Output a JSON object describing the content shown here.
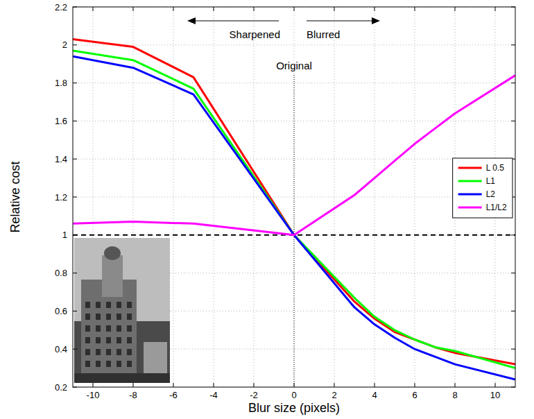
{
  "chart_data": {
    "type": "line",
    "x_label": "Blur size (pixels)",
    "y_label": "Relative cost",
    "annotations": [
      "Sharpened",
      "Blurred",
      "Original"
    ],
    "vline": 0,
    "hline": 1,
    "x": [
      -11,
      -8,
      -5,
      0,
      3,
      4,
      5,
      6,
      7,
      8,
      11
    ],
    "series": [
      {
        "name": "L 0.5",
        "color": "#ff0000",
        "values": [
          2.03,
          1.99,
          1.83,
          1.0,
          0.65,
          0.56,
          0.49,
          0.45,
          0.41,
          0.38,
          0.32
        ]
      },
      {
        "name": "L1",
        "color": "#00ff00",
        "values": [
          1.97,
          1.92,
          1.77,
          1.0,
          0.67,
          0.57,
          0.5,
          0.45,
          0.41,
          0.39,
          0.3
        ]
      },
      {
        "name": "L2",
        "color": "#0000ff",
        "values": [
          1.94,
          1.88,
          1.74,
          1.0,
          0.62,
          0.53,
          0.46,
          0.4,
          0.36,
          0.32,
          0.24
        ]
      },
      {
        "name": "L1/L2",
        "color": "#ff00ff",
        "values": [
          1.06,
          1.07,
          1.06,
          1.0,
          1.21,
          1.3,
          1.39,
          1.48,
          1.56,
          1.64,
          1.84
        ]
      }
    ],
    "xlim": [
      -11,
      11
    ],
    "ylim": [
      0.2,
      2.2
    ],
    "xticks": [
      -10,
      -8,
      -6,
      -4,
      -2,
      0,
      2,
      4,
      6,
      8,
      10
    ],
    "yticks": [
      0.2,
      0.4,
      0.6,
      0.8,
      1,
      1.2,
      1.4,
      1.6,
      1.8,
      2,
      2.2
    ],
    "grid": true,
    "legend": "right"
  }
}
